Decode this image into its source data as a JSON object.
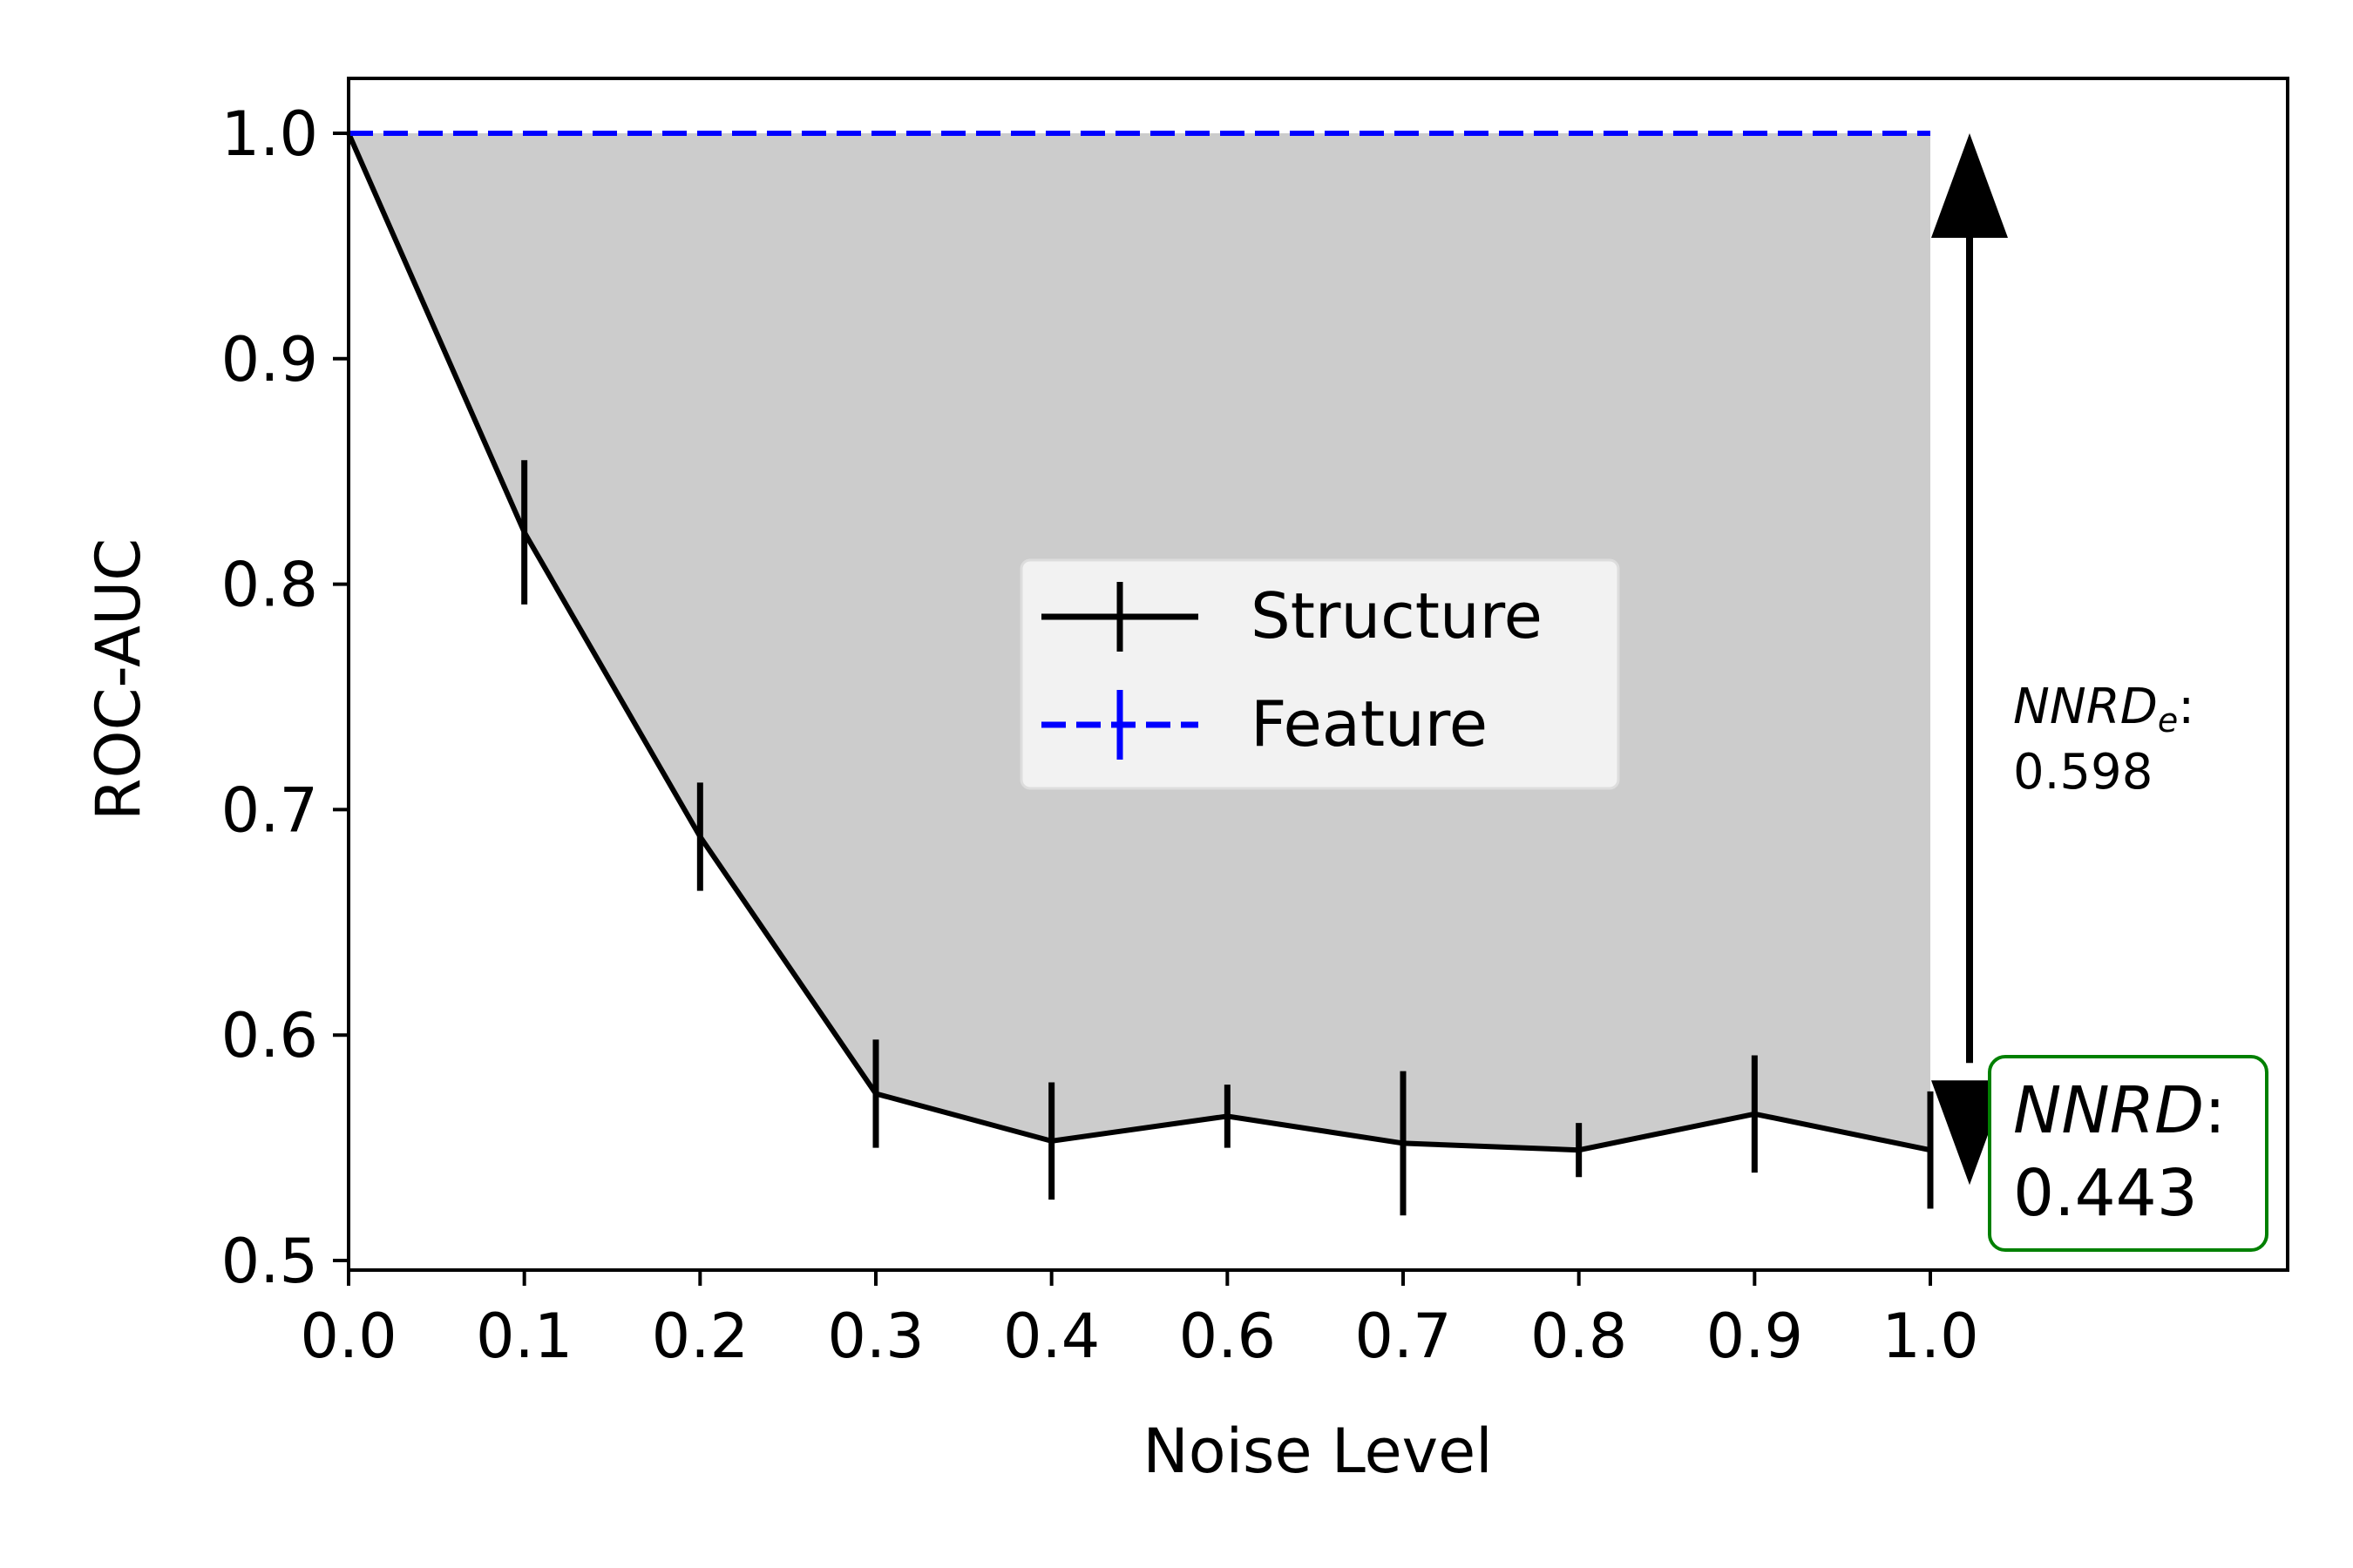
{
  "chart_data": {
    "type": "line",
    "title": "",
    "xlabel": "Noise Level",
    "ylabel": "ROC-AUC",
    "categories": [
      "0.0",
      "0.1",
      "0.2",
      "0.3",
      "0.4",
      "0.6",
      "0.7",
      "0.8",
      "0.9",
      "1.0"
    ],
    "ylim": [
      0.495,
      1.025
    ],
    "yticks": [
      "0.5",
      "0.6",
      "0.7",
      "0.8",
      "0.9",
      "1.0"
    ],
    "grid": false,
    "legend_position": "center",
    "series": [
      {
        "name": "Structure",
        "color": "#000000",
        "style": "solid",
        "values": [
          1.0,
          0.823,
          0.688,
          0.574,
          0.553,
          0.564,
          0.552,
          0.549,
          0.565,
          0.549
        ],
        "errors": [
          null,
          0.032,
          0.024,
          0.024,
          0.026,
          0.014,
          0.032,
          0.012,
          0.026,
          0.026
        ]
      },
      {
        "name": "Feature",
        "color": "#0000ff",
        "style": "dashed",
        "values": [
          1.0,
          1.0,
          1.0,
          1.0,
          1.0,
          1.0,
          1.0,
          1.0,
          1.0,
          1.0
        ],
        "errors": [
          0,
          0,
          0,
          0,
          0,
          0,
          0,
          0,
          0,
          0
        ]
      }
    ],
    "fill_between": {
      "from_series": "Structure",
      "to_series": "Feature",
      "color": "#cccccc"
    },
    "annotations": {
      "nnrd_e": {
        "label_main": "NNRD",
        "label_sub": "e",
        "label_suffix": ":",
        "value": "0.598"
      },
      "nnrd": {
        "label_main": "NNRD",
        "label_suffix": ":",
        "value": "0.443",
        "box_color": "#008000"
      }
    }
  }
}
